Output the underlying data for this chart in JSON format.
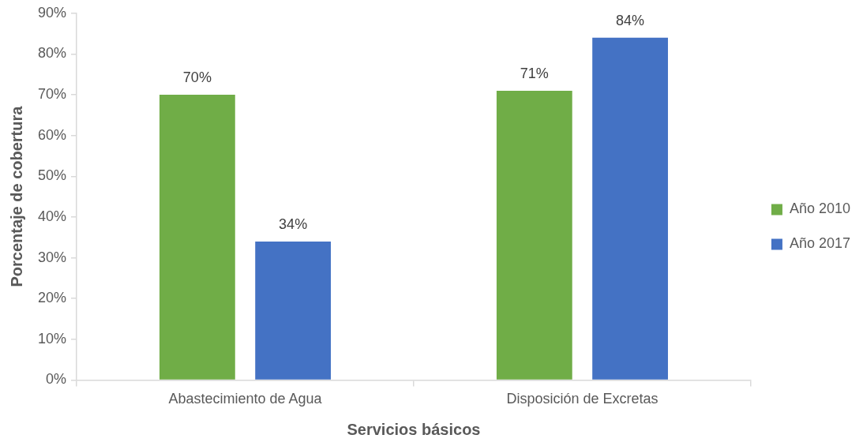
{
  "chart_data": {
    "type": "bar",
    "xlabel": "Servicios básicos",
    "ylabel": "Porcentaje de cobertura",
    "categories": [
      "Abastecimiento de Agua",
      "Disposición de Excretas"
    ],
    "series": [
      {
        "name": "Año 2010",
        "color": "#70ad47",
        "values": [
          70,
          71
        ],
        "value_labels": [
          "70%",
          "71%"
        ]
      },
      {
        "name": "Año 2017",
        "color": "#4472c4",
        "values": [
          34,
          84
        ],
        "value_labels": [
          "34%",
          "84%"
        ]
      }
    ],
    "ylim": [
      0,
      90
    ],
    "yticks": [
      {
        "value": 0,
        "label": "0%"
      },
      {
        "value": 10,
        "label": "10%"
      },
      {
        "value": 20,
        "label": "20%"
      },
      {
        "value": 30,
        "label": "30%"
      },
      {
        "value": 40,
        "label": "40%"
      },
      {
        "value": 50,
        "label": "50%"
      },
      {
        "value": 60,
        "label": "60%"
      },
      {
        "value": 70,
        "label": "70%"
      },
      {
        "value": 80,
        "label": "80%"
      },
      {
        "value": 90,
        "label": "90%"
      }
    ],
    "grid": false,
    "legend": "right"
  }
}
